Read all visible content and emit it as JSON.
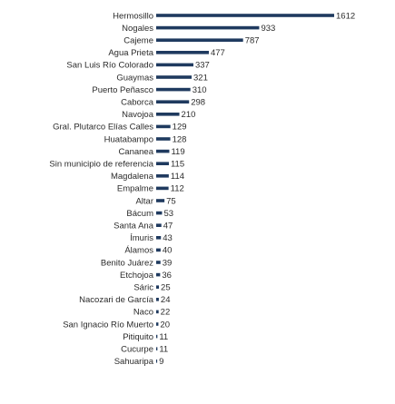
{
  "chart_data": {
    "type": "bar",
    "orientation": "horizontal",
    "title": "",
    "xlabel": "",
    "ylabel": "",
    "grid": false,
    "legend": "none",
    "bar_color": "#1f3a5f",
    "xlim": [
      0,
      1612
    ],
    "categories": [
      "Hermosillo",
      "Nogales",
      "Cajeme",
      "Agua Prieta",
      "San Luis Río Colorado",
      "Guaymas",
      "Puerto Peñasco",
      "Caborca",
      "Navojoa",
      "Gral. Plutarco Elías Calles",
      "Huatabampo",
      "Cananea",
      "Sin municipio de referencia",
      "Magdalena",
      "Empalme",
      "Altar",
      "Bácum",
      "Santa Ana",
      "Ímuris",
      "Álamos",
      "Benito Juárez",
      "Etchojoa",
      "Sáric",
      "Nacozari de García",
      "Naco",
      "San Ignacio Río Muerto",
      "Pitiquito",
      "Cucurpe",
      "Sahuaripa"
    ],
    "values": [
      1612,
      933,
      787,
      477,
      337,
      321,
      310,
      298,
      210,
      129,
      128,
      119,
      115,
      114,
      112,
      75,
      53,
      47,
      43,
      40,
      39,
      36,
      25,
      24,
      22,
      20,
      11,
      11,
      9
    ]
  }
}
